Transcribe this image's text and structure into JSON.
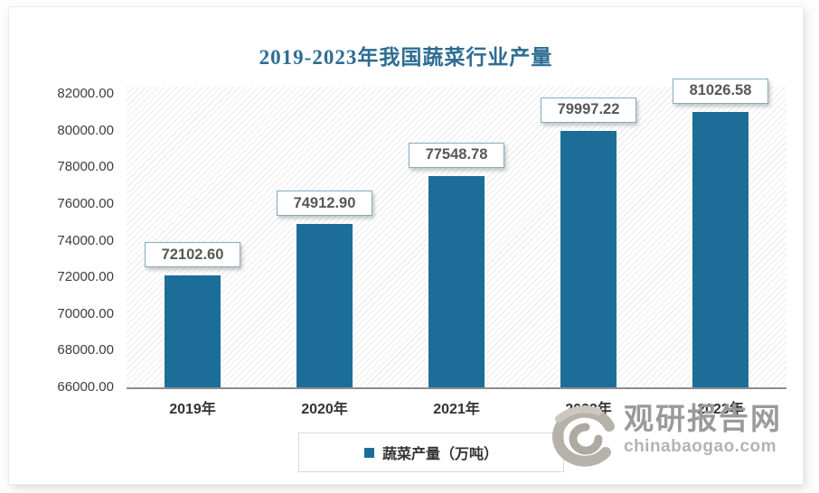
{
  "page": {
    "title": "2019-2023年我国蔬菜行业产量"
  },
  "chart_data": {
    "type": "bar",
    "title": "2019-2023年我国蔬菜行业产量",
    "categories": [
      "2019年",
      "2020年",
      "2021年",
      "2022年",
      "2023年"
    ],
    "values": [
      72102.6,
      74912.9,
      77548.78,
      79997.22,
      81026.58
    ],
    "value_labels": [
      "72102.60",
      "74912.90",
      "77548.78",
      "79997.22",
      "81026.58"
    ],
    "series_name": "蔬菜产量（万吨）",
    "xlabel": "",
    "ylabel": "",
    "ylim": [
      66000,
      82000
    ],
    "y_step": 2000,
    "y_tick_labels": [
      "66000.00",
      "68000.00",
      "70000.00",
      "72000.00",
      "74000.00",
      "76000.00",
      "78000.00",
      "80000.00",
      "82000.00"
    ],
    "grid": false,
    "legend_position": "bottom",
    "bar_color": "#1C6E98",
    "plot_background": "diagonal-hatch"
  },
  "legend": {
    "label": "蔬菜产量（万吨）",
    "marker_color": "#1C6E98"
  },
  "watermark": {
    "name": "观研报告网",
    "domain": "chinabaogao.com"
  },
  "colors": {
    "bar": "#1C6E98",
    "title": "#2d6d92",
    "axis_line": "#8c8c8c",
    "tick_text": "#3d3d3d",
    "value_label_border": "#86abc1",
    "watermark_gray": "#9a9a9a"
  }
}
